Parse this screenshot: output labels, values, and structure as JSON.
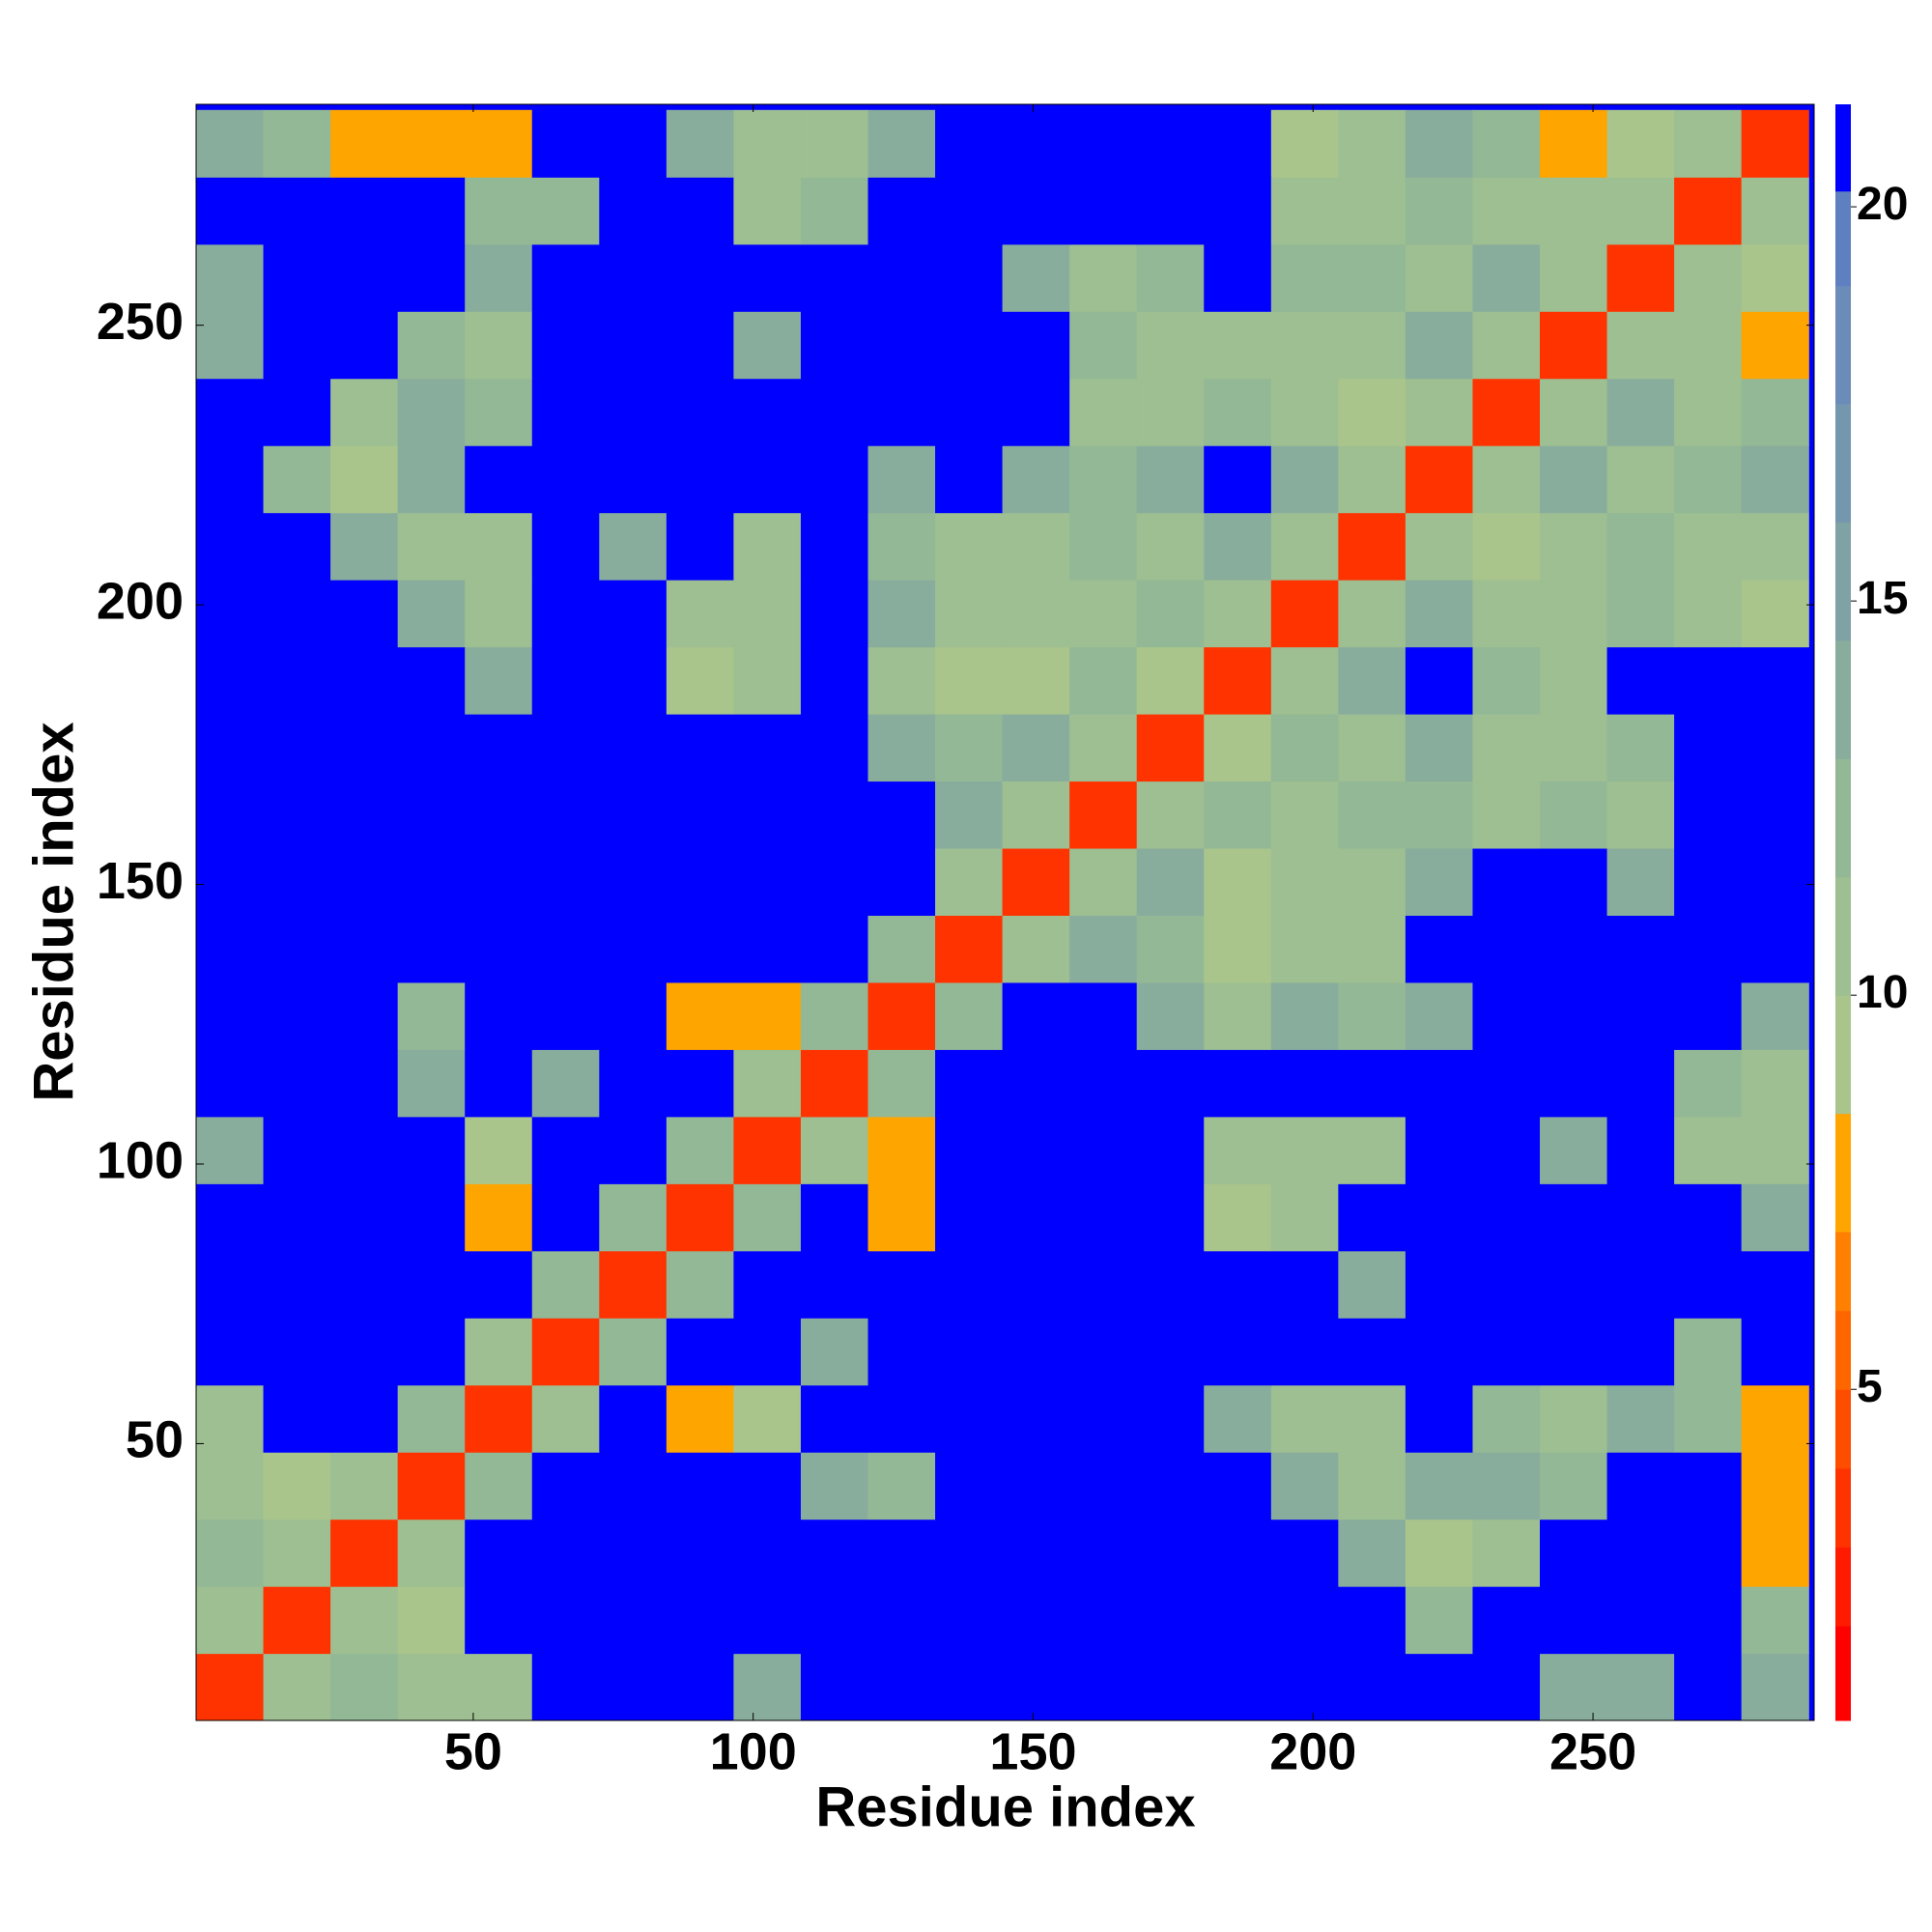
{
  "chart_data": {
    "type": "heatmap",
    "x_label": "Residue index",
    "y_label": "Residue index",
    "x": [
      6.5,
      18.5,
      30.5,
      42.5,
      54.5,
      66.5,
      78.5,
      90.5,
      102.5,
      114.5,
      126.5,
      138.5,
      150.5,
      162.5,
      174.5,
      186.5,
      198.5,
      210.5,
      222.5,
      234.5,
      246.5,
      258.5,
      270.5,
      282.5
    ],
    "y": [
      6.5,
      18.5,
      30.5,
      42.5,
      54.5,
      66.5,
      78.5,
      90.5,
      102.5,
      114.5,
      126.5,
      138.5,
      150.5,
      162.5,
      174.5,
      186.5,
      198.5,
      210.5,
      222.5,
      234.5,
      246.5,
      258.5,
      270.5,
      282.5
    ],
    "z": [
      [
        3,
        11,
        12,
        10,
        11,
        21,
        21,
        21,
        13,
        21,
        21,
        21,
        21,
        21,
        21,
        21,
        21,
        21,
        21,
        21,
        14,
        14,
        21,
        13
      ],
      [
        11,
        3,
        11,
        9,
        21,
        21,
        21,
        21,
        21,
        21,
        21,
        21,
        21,
        21,
        21,
        21,
        21,
        21,
        12,
        21,
        21,
        21,
        21,
        12
      ],
      [
        12,
        11,
        3,
        11,
        21,
        21,
        21,
        21,
        21,
        21,
        21,
        21,
        21,
        21,
        21,
        21,
        21,
        14,
        9,
        11,
        21,
        21,
        21,
        8
      ],
      [
        10,
        9,
        11,
        3,
        12,
        21,
        21,
        21,
        21,
        13,
        12,
        21,
        21,
        21,
        21,
        21,
        13,
        11,
        14,
        13,
        12,
        21,
        21,
        8
      ],
      [
        11,
        21,
        21,
        12,
        3,
        10,
        21,
        8,
        9,
        21,
        21,
        21,
        21,
        21,
        21,
        13,
        10,
        11,
        21,
        12,
        10,
        13,
        12,
        8
      ],
      [
        21,
        21,
        21,
        21,
        10,
        3,
        12,
        21,
        21,
        13,
        21,
        21,
        21,
        21,
        21,
        21,
        21,
        21,
        21,
        21,
        21,
        21,
        12,
        21
      ],
      [
        21,
        21,
        21,
        21,
        21,
        12,
        3,
        12,
        21,
        21,
        21,
        21,
        21,
        21,
        21,
        21,
        21,
        14,
        21,
        21,
        21,
        21,
        21,
        21
      ],
      [
        21,
        21,
        21,
        21,
        8,
        21,
        12,
        3,
        12,
        21,
        8,
        21,
        21,
        21,
        21,
        9,
        10,
        21,
        21,
        21,
        21,
        21,
        21,
        14
      ],
      [
        13,
        21,
        21,
        21,
        9,
        21,
        21,
        12,
        3,
        11,
        8,
        21,
        21,
        21,
        21,
        11,
        10,
        11,
        21,
        21,
        13,
        21,
        11,
        10
      ],
      [
        21,
        21,
        21,
        13,
        21,
        13,
        21,
        21,
        11,
        3,
        12,
        21,
        21,
        21,
        21,
        21,
        21,
        21,
        21,
        21,
        21,
        21,
        12,
        11
      ],
      [
        21,
        21,
        21,
        12,
        21,
        21,
        21,
        8,
        8,
        12,
        3,
        12,
        21,
        21,
        14,
        10,
        13,
        12,
        14,
        21,
        21,
        21,
        21,
        14
      ],
      [
        21,
        21,
        21,
        21,
        21,
        21,
        21,
        21,
        21,
        21,
        12,
        3,
        11,
        14,
        12,
        9,
        11,
        11,
        21,
        21,
        21,
        21,
        21,
        21
      ],
      [
        21,
        21,
        21,
        21,
        21,
        21,
        21,
        21,
        21,
        21,
        21,
        11,
        3,
        11,
        13,
        9,
        11,
        11,
        13,
        21,
        21,
        14,
        21,
        21
      ],
      [
        21,
        21,
        21,
        21,
        21,
        21,
        21,
        21,
        21,
        21,
        21,
        14,
        11,
        3,
        10,
        12,
        11,
        12,
        12,
        11,
        12,
        10,
        21,
        21
      ],
      [
        21,
        21,
        21,
        21,
        21,
        21,
        21,
        21,
        21,
        21,
        14,
        12,
        13,
        10,
        3,
        9,
        12,
        11,
        13,
        11,
        11,
        12,
        21,
        21
      ],
      [
        21,
        21,
        21,
        21,
        13,
        21,
        21,
        9,
        11,
        21,
        10,
        9,
        9,
        12,
        9,
        3,
        10,
        13,
        21,
        12,
        11,
        21,
        21,
        21
      ],
      [
        21,
        21,
        21,
        13,
        10,
        21,
        21,
        10,
        10,
        21,
        13,
        11,
        11,
        11,
        12,
        10,
        3,
        11,
        14,
        10,
        11,
        12,
        10,
        9
      ],
      [
        21,
        21,
        14,
        11,
        11,
        21,
        14,
        21,
        11,
        21,
        12,
        11,
        11,
        12,
        11,
        13,
        11,
        3,
        11,
        9,
        10,
        12,
        11,
        11
      ],
      [
        21,
        12,
        9,
        14,
        21,
        21,
        21,
        21,
        21,
        21,
        14,
        21,
        13,
        12,
        13,
        21,
        14,
        11,
        3,
        10,
        14,
        11,
        12,
        13
      ],
      [
        21,
        21,
        11,
        13,
        12,
        21,
        21,
        21,
        21,
        21,
        21,
        21,
        21,
        11,
        11,
        12,
        10,
        9,
        10,
        3,
        11,
        13,
        10,
        12
      ],
      [
        14,
        21,
        21,
        12,
        10,
        21,
        21,
        21,
        13,
        21,
        21,
        21,
        21,
        12,
        11,
        11,
        11,
        10,
        14,
        11,
        3,
        10,
        10,
        8
      ],
      [
        14,
        21,
        21,
        21,
        13,
        21,
        21,
        21,
        21,
        21,
        21,
        21,
        14,
        10,
        12,
        21,
        12,
        12,
        11,
        13,
        10,
        3,
        11,
        9
      ],
      [
        21,
        21,
        21,
        21,
        12,
        12,
        21,
        21,
        11,
        12,
        21,
        21,
        21,
        21,
        21,
        21,
        10,
        11,
        12,
        10,
        10,
        11,
        3,
        10
      ],
      [
        13,
        12,
        8,
        8,
        8,
        21,
        21,
        14,
        10,
        11,
        14,
        21,
        21,
        21,
        21,
        21,
        9,
        11,
        13,
        12,
        8,
        9,
        10,
        3
      ]
    ],
    "xlim": [
      0.5,
      289.5
    ],
    "ylim": [
      0.5,
      289.5
    ],
    "xticks": [
      50,
      100,
      150,
      200,
      250
    ],
    "yticks": [
      50,
      100,
      150,
      200,
      250
    ],
    "clim": [
      0.8,
      21.3
    ],
    "cticks": [
      5,
      10,
      15,
      20
    ],
    "levels": [
      0.8,
      2,
      3,
      4,
      5,
      6,
      7,
      8.5,
      10,
      11.5,
      13,
      14.5,
      16,
      17.5,
      19,
      20.2,
      21.3
    ],
    "colors": [
      "#ff0000",
      "#ff1a00",
      "#ff3300",
      "#ff4d00",
      "#ff6600",
      "#ff8000",
      "#ffa500",
      "#a9c58c",
      "#9dbf91",
      "#93b896",
      "#89ad9c",
      "#7fa2a4",
      "#7597ae",
      "#6b8cb8",
      "#5f80c0",
      "#0000ff"
    ]
  }
}
